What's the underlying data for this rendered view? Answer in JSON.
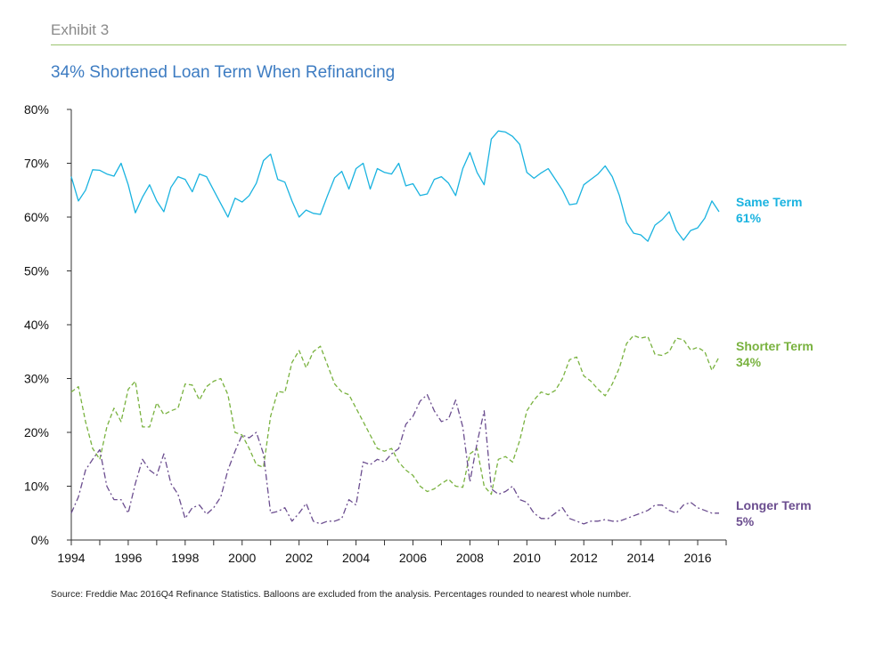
{
  "header": {
    "exhibit": "Exhibit 3",
    "title": "34% Shortened Loan Term When Refinancing"
  },
  "footer": {
    "source": "Source: Freddie Mac 2016Q4 Refinance Statistics. Balloons are excluded from the analysis. Percentages rounded to nearest whole number."
  },
  "colors": {
    "same": "#1ab3e0",
    "shorter": "#79b23f",
    "longer": "#6b4d8f"
  },
  "chart_data": {
    "type": "line",
    "title": "34% Shortened Loan Term When Refinancing",
    "xlabel": "",
    "ylabel": "",
    "xlim": [
      1994,
      2017
    ],
    "ylim": [
      0,
      80
    ],
    "x_ticks": [
      "1994",
      "1996",
      "1998",
      "2000",
      "2002",
      "2004",
      "2006",
      "2008",
      "2010",
      "2012",
      "2014",
      "2016"
    ],
    "y_ticks": [
      "0%",
      "10%",
      "20%",
      "30%",
      "40%",
      "50%",
      "60%",
      "70%",
      "80%"
    ],
    "grid": false,
    "legend": "direct-labels-right",
    "series": [
      {
        "name": "Same Term",
        "label_value": "61%",
        "style": "solid",
        "x": [
          1994.0,
          1994.25,
          1994.5,
          1994.75,
          1995.0,
          1995.25,
          1995.5,
          1995.75,
          1996.0,
          1996.25,
          1996.5,
          1996.75,
          1997.0,
          1997.25,
          1997.5,
          1997.75,
          1998.0,
          1998.25,
          1998.5,
          1998.75,
          1999.0,
          1999.25,
          1999.5,
          1999.75,
          2000.0,
          2000.25,
          2000.5,
          2000.75,
          2001.0,
          2001.25,
          2001.5,
          2001.75,
          2002.0,
          2002.25,
          2002.5,
          2002.75,
          2003.0,
          2003.25,
          2003.5,
          2003.75,
          2004.0,
          2004.25,
          2004.5,
          2004.75,
          2005.0,
          2005.25,
          2005.5,
          2005.75,
          2006.0,
          2006.25,
          2006.5,
          2006.75,
          2007.0,
          2007.25,
          2007.5,
          2007.75,
          2008.0,
          2008.25,
          2008.5,
          2008.75,
          2009.0,
          2009.25,
          2009.5,
          2009.75,
          2010.0,
          2010.25,
          2010.5,
          2010.75,
          2011.0,
          2011.25,
          2011.5,
          2011.75,
          2012.0,
          2012.25,
          2012.5,
          2012.75,
          2013.0,
          2013.25,
          2013.5,
          2013.75,
          2014.0,
          2014.25,
          2014.5,
          2014.75,
          2015.0,
          2015.25,
          2015.5,
          2015.75,
          2016.0,
          2016.25,
          2016.5,
          2016.75
        ],
        "values": [
          67.5,
          63.0,
          65.0,
          68.8,
          68.7,
          68.0,
          67.6,
          70.0,
          66.0,
          60.8,
          63.7,
          66.0,
          63.0,
          61.0,
          65.5,
          67.5,
          67.0,
          64.7,
          68.0,
          67.5,
          65.0,
          62.5,
          60.0,
          63.5,
          62.8,
          64.0,
          66.3,
          70.5,
          71.7,
          67.0,
          66.5,
          63.0,
          60.0,
          61.3,
          60.7,
          60.5,
          64.0,
          67.3,
          68.5,
          65.2,
          69.0,
          70.0,
          65.2,
          69.0,
          68.3,
          68.0,
          70.0,
          65.8,
          66.2,
          64.0,
          64.3,
          67.0,
          67.5,
          66.3,
          64.0,
          69.0,
          72.0,
          68.3,
          66.0,
          74.5,
          76.0,
          75.8,
          75.0,
          73.5,
          68.3,
          67.2,
          68.2,
          69.0,
          67.0,
          65.0,
          62.3,
          62.5,
          66.0,
          67.0,
          68.0,
          69.5,
          67.5,
          64.0,
          59.0,
          57.0,
          56.7,
          55.5,
          58.5,
          59.5,
          61.0,
          57.5,
          55.7,
          57.5,
          58.0,
          59.8,
          63.0,
          61.0
        ]
      },
      {
        "name": "Shorter Term",
        "label_value": "34%",
        "style": "dashed",
        "x": [
          1994.0,
          1994.25,
          1994.5,
          1994.75,
          1995.0,
          1995.25,
          1995.5,
          1995.75,
          1996.0,
          1996.25,
          1996.5,
          1996.75,
          1997.0,
          1997.25,
          1997.5,
          1997.75,
          1998.0,
          1998.25,
          1998.5,
          1998.75,
          1999.0,
          1999.25,
          1999.5,
          1999.75,
          2000.0,
          2000.25,
          2000.5,
          2000.75,
          2001.0,
          2001.25,
          2001.5,
          2001.75,
          2002.0,
          2002.25,
          2002.5,
          2002.75,
          2003.0,
          2003.25,
          2003.5,
          2003.75,
          2004.0,
          2004.25,
          2004.5,
          2004.75,
          2005.0,
          2005.25,
          2005.5,
          2005.75,
          2006.0,
          2006.25,
          2006.5,
          2006.75,
          2007.0,
          2007.25,
          2007.5,
          2007.75,
          2008.0,
          2008.25,
          2008.5,
          2008.75,
          2009.0,
          2009.25,
          2009.5,
          2009.75,
          2010.0,
          2010.25,
          2010.5,
          2010.75,
          2011.0,
          2011.25,
          2011.5,
          2011.75,
          2012.0,
          2012.25,
          2012.5,
          2012.75,
          2013.0,
          2013.25,
          2013.5,
          2013.75,
          2014.0,
          2014.25,
          2014.5,
          2014.75,
          2015.0,
          2015.25,
          2015.5,
          2015.75,
          2016.0,
          2016.25,
          2016.5,
          2016.75
        ],
        "values": [
          27.5,
          28.5,
          22.0,
          17.0,
          15.0,
          21.0,
          24.5,
          22.0,
          28.0,
          29.5,
          21.0,
          21.0,
          25.5,
          23.3,
          24.0,
          24.5,
          29.0,
          28.8,
          26.0,
          28.5,
          29.5,
          30.0,
          27.0,
          20.0,
          19.5,
          17.0,
          14.0,
          13.5,
          23.0,
          27.6,
          27.4,
          33.0,
          35.2,
          32.0,
          35.0,
          36.0,
          32.5,
          29.0,
          27.5,
          27.0,
          24.5,
          22.0,
          19.5,
          17.0,
          16.5,
          17.0,
          14.5,
          13.0,
          12.0,
          10.0,
          9.0,
          9.5,
          10.5,
          11.3,
          10.0,
          9.8,
          16.0,
          17.0,
          10.0,
          8.5,
          15.0,
          15.5,
          14.5,
          18.5,
          24.0,
          26.0,
          27.5,
          27.0,
          27.8,
          30.0,
          33.5,
          34.0,
          30.5,
          29.5,
          28.0,
          26.8,
          29.0,
          32.0,
          36.5,
          38.0,
          37.5,
          37.8,
          34.5,
          34.3,
          35.0,
          37.5,
          37.2,
          35.3,
          35.8,
          35.0,
          31.5,
          34.0
        ]
      },
      {
        "name": "Longer Term",
        "label_value": "5%",
        "style": "dash-dot",
        "x": [
          1994.0,
          1994.25,
          1994.5,
          1994.75,
          1995.0,
          1995.25,
          1995.5,
          1995.75,
          1996.0,
          1996.25,
          1996.5,
          1996.75,
          1997.0,
          1997.25,
          1997.5,
          1997.75,
          1998.0,
          1998.25,
          1998.5,
          1998.75,
          1999.0,
          1999.25,
          1999.5,
          1999.75,
          2000.0,
          2000.25,
          2000.5,
          2000.75,
          2001.0,
          2001.25,
          2001.5,
          2001.75,
          2002.0,
          2002.25,
          2002.5,
          2002.75,
          2003.0,
          2003.25,
          2003.5,
          2003.75,
          2004.0,
          2004.25,
          2004.5,
          2004.75,
          2005.0,
          2005.25,
          2005.5,
          2005.75,
          2006.0,
          2006.25,
          2006.5,
          2006.75,
          2007.0,
          2007.25,
          2007.5,
          2007.75,
          2008.0,
          2008.25,
          2008.5,
          2008.75,
          2009.0,
          2009.25,
          2009.5,
          2009.75,
          2010.0,
          2010.25,
          2010.5,
          2010.75,
          2011.0,
          2011.25,
          2011.5,
          2011.75,
          2012.0,
          2012.25,
          2012.5,
          2012.75,
          2013.0,
          2013.25,
          2013.5,
          2013.75,
          2014.0,
          2014.25,
          2014.5,
          2014.75,
          2015.0,
          2015.25,
          2015.5,
          2015.75,
          2016.0,
          2016.25,
          2016.5,
          2016.75
        ],
        "values": [
          5.0,
          8.0,
          13.0,
          15.0,
          16.8,
          10.0,
          7.5,
          7.5,
          5.0,
          10.5,
          15.0,
          13.0,
          12.0,
          16.0,
          10.5,
          8.5,
          4.0,
          6.0,
          6.5,
          4.8,
          6.0,
          8.0,
          13.0,
          16.5,
          19.5,
          19.0,
          20.0,
          16.0,
          5.0,
          5.3,
          6.0,
          3.5,
          5.0,
          6.8,
          3.5,
          3.0,
          3.5,
          3.5,
          4.0,
          7.5,
          6.5,
          14.5,
          14.0,
          15.0,
          14.5,
          16.0,
          17.0,
          21.5,
          23.0,
          25.8,
          27.0,
          24.0,
          22.0,
          22.5,
          26.0,
          21.0,
          10.8,
          18.0,
          24.0,
          9.5,
          8.5,
          9.0,
          10.0,
          7.5,
          7.0,
          5.0,
          4.0,
          4.0,
          5.0,
          6.0,
          4.0,
          3.5,
          3.0,
          3.5,
          3.5,
          3.8,
          3.5,
          3.5,
          4.0,
          4.5,
          5.0,
          5.5,
          6.5,
          6.5,
          5.5,
          5.0,
          6.5,
          7.0,
          6.0,
          5.5,
          5.0,
          5.0
        ]
      }
    ]
  }
}
